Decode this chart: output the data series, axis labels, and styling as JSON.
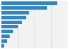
{
  "values": [
    4280000,
    3480000,
    2080000,
    1870000,
    1560000,
    1250000,
    880000,
    620000,
    420000,
    190000
  ],
  "bar_color": "#2e86c8",
  "background_color": "#ffffff",
  "plot_bg_color": "#f2f2f2",
  "xlim": [
    0,
    5050000
  ],
  "bar_height": 0.75,
  "figsize": [
    1.0,
    0.71
  ],
  "dpi": 100,
  "num_gridlines": 4,
  "grid_color": "#cccccc"
}
